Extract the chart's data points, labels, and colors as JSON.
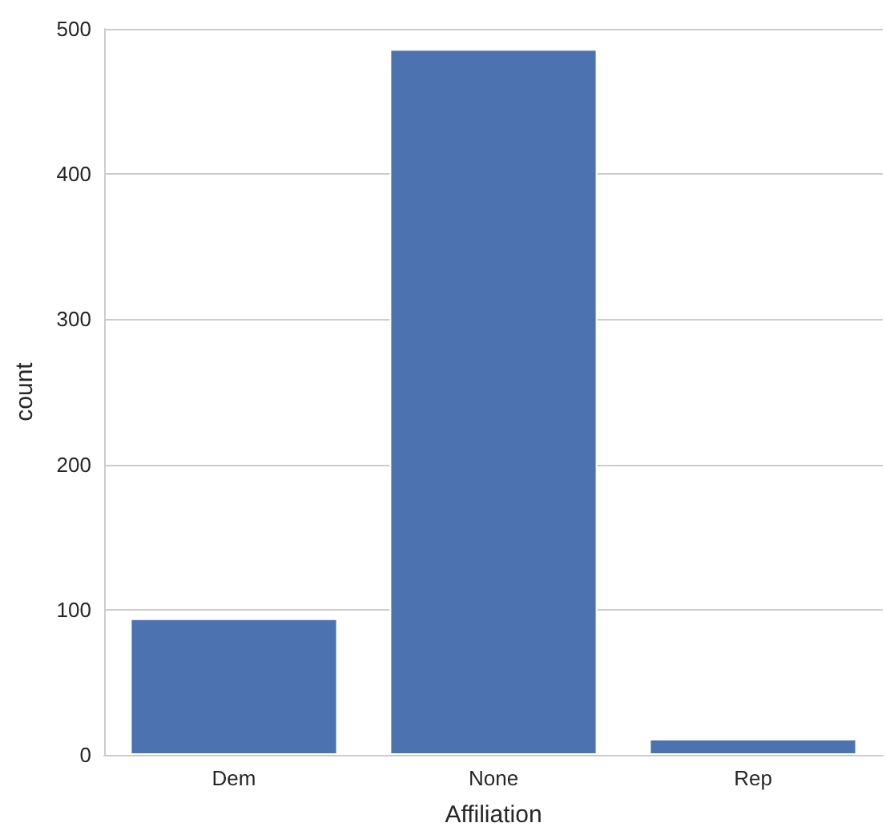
{
  "chart_data": {
    "type": "bar",
    "xlabel": "Affiliation",
    "ylabel": "count",
    "categories": [
      "Dem",
      "None",
      "Rep"
    ],
    "values": [
      94,
      486,
      11
    ],
    "color": "#4c72b0",
    "ylim": [
      0,
      500
    ],
    "yticks": [
      0,
      100,
      200,
      300,
      400,
      500
    ],
    "grid": "y"
  }
}
